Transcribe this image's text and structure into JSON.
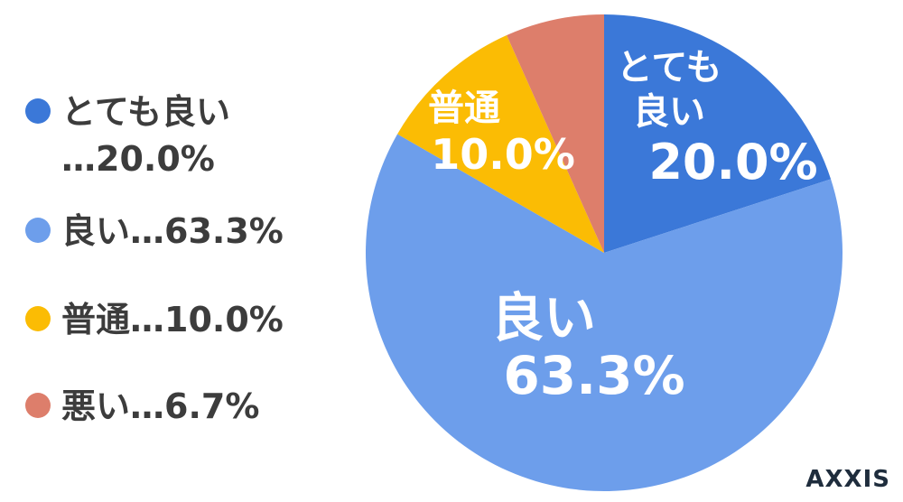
{
  "chart_data": {
    "type": "pie",
    "categories": [
      "とても良い",
      "良い",
      "普通",
      "悪い"
    ],
    "values": [
      20.0,
      63.3,
      10.0,
      6.7
    ],
    "colors": [
      "#3b78d8",
      "#6d9eeb",
      "#fbbc04",
      "#dd7e6b"
    ],
    "legend": {
      "placement": "left",
      "entries": [
        "とても良い\n…20.0%",
        "良い…63.3%",
        "普通…10.0%",
        "悪い…6.7%"
      ]
    },
    "slice_labels": {
      "とても良い": {
        "name": "とても\n良い",
        "value": "20.0%"
      },
      "良い": {
        "name": "良い",
        "value": "63.3%"
      },
      "普通": {
        "name": "普通",
        "value": "10.0%"
      }
    }
  },
  "branding": {
    "logo_text": "AXXIS"
  }
}
